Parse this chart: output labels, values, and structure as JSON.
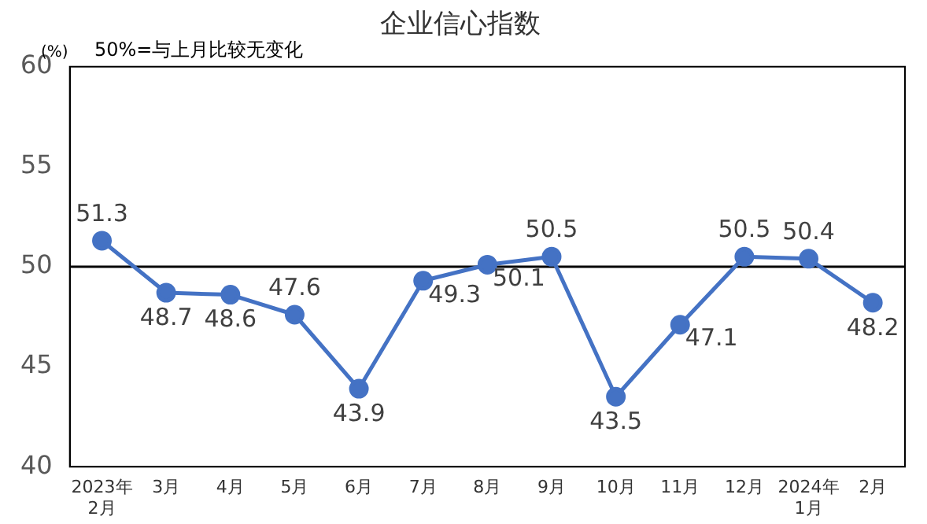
{
  "chart_data": {
    "type": "line",
    "title": "企业信心指数",
    "ylabel": "(%)",
    "annotations": [
      "50%=与上月比较无变化"
    ],
    "categories": [
      "2023年\n2月",
      "3月",
      "4月",
      "5月",
      "6月",
      "7月",
      "8月",
      "9月",
      "10月",
      "11月",
      "12月",
      "2024年\n1月",
      "2月"
    ],
    "series": [
      {
        "color": "#4472c4",
        "values": [
          51.3,
          48.7,
          48.6,
          47.6,
          43.9,
          49.3,
          50.1,
          50.5,
          43.5,
          47.1,
          50.5,
          50.4,
          48.2
        ]
      }
    ],
    "ylim": [
      40,
      60
    ],
    "yticks": [
      40,
      45,
      50,
      55,
      60
    ],
    "grid": false,
    "legend": false,
    "marker": "circle",
    "line_style": "solid",
    "data_labels": true,
    "ref_lines": [
      {
        "axis": "y",
        "value": 50,
        "color": "#000000"
      }
    ]
  }
}
